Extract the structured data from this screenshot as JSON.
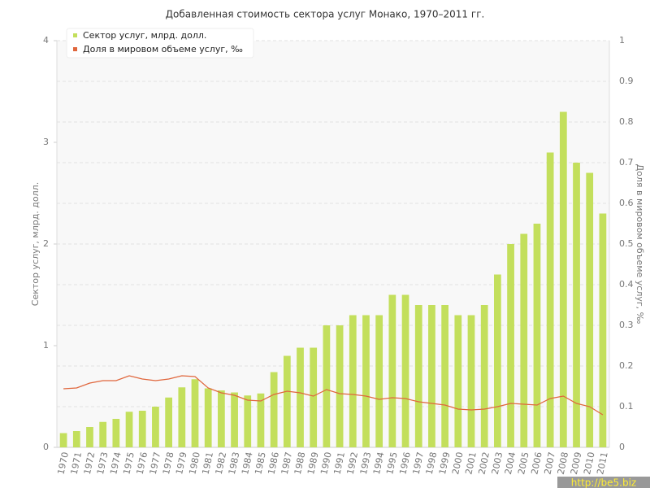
{
  "chart_data": {
    "type": "bar-line",
    "title": "Добавленная стоимость сектора услуг Монако, 1970–2011 гг.",
    "y_label": "Сектор услуг, млрд. долл.",
    "y2_label": "Доля в мировом объеме услуг, ‰",
    "watermark": "http://be5.biz",
    "categories": [
      "1970",
      "1971",
      "1972",
      "1973",
      "1974",
      "1975",
      "1976",
      "1977",
      "1978",
      "1979",
      "1980",
      "1981",
      "1982",
      "1983",
      "1984",
      "1985",
      "1986",
      "1987",
      "1988",
      "1989",
      "1990",
      "1991",
      "1992",
      "1993",
      "1994",
      "1995",
      "1996",
      "1997",
      "1998",
      "1999",
      "2000",
      "2001",
      "2002",
      "2003",
      "2004",
      "2005",
      "2006",
      "2007",
      "2008",
      "2009",
      "2010",
      "2011"
    ],
    "series": [
      {
        "name": "Сектор услуг, млрд. долл.",
        "color": "#c3df5c",
        "axis": "y",
        "kind": "bar",
        "values": [
          0.14,
          0.16,
          0.2,
          0.25,
          0.28,
          0.35,
          0.36,
          0.4,
          0.49,
          0.59,
          0.67,
          0.58,
          0.56,
          0.54,
          0.51,
          0.53,
          0.74,
          0.9,
          0.98,
          0.98,
          1.2,
          1.2,
          1.3,
          1.3,
          1.3,
          1.5,
          1.5,
          1.4,
          1.4,
          1.4,
          1.3,
          1.3,
          1.4,
          1.7,
          2.0,
          2.1,
          2.2,
          2.9,
          3.3,
          2.8,
          2.7,
          2.3
        ]
      },
      {
        "name": "Доля в мировом объеме услуг, ‰",
        "color": "#e0663c",
        "axis": "y2",
        "kind": "line",
        "values": [
          0.144,
          0.146,
          0.158,
          0.164,
          0.164,
          0.176,
          0.168,
          0.164,
          0.168,
          0.176,
          0.174,
          0.146,
          0.134,
          0.128,
          0.116,
          0.114,
          0.13,
          0.138,
          0.134,
          0.126,
          0.142,
          0.132,
          0.13,
          0.126,
          0.118,
          0.122,
          0.12,
          0.112,
          0.108,
          0.104,
          0.094,
          0.092,
          0.094,
          0.1,
          0.108,
          0.106,
          0.104,
          0.12,
          0.126,
          0.108,
          0.1,
          0.08
        ]
      }
    ],
    "ylim": [
      0,
      4
    ],
    "yticks": [
      0,
      1,
      2,
      3,
      4
    ],
    "y2lim": [
      0,
      1
    ],
    "y2ticks": [
      0,
      0.1,
      0.2,
      0.3,
      0.4,
      0.5,
      0.6,
      0.7,
      0.8,
      0.9,
      1
    ],
    "grid": true
  }
}
